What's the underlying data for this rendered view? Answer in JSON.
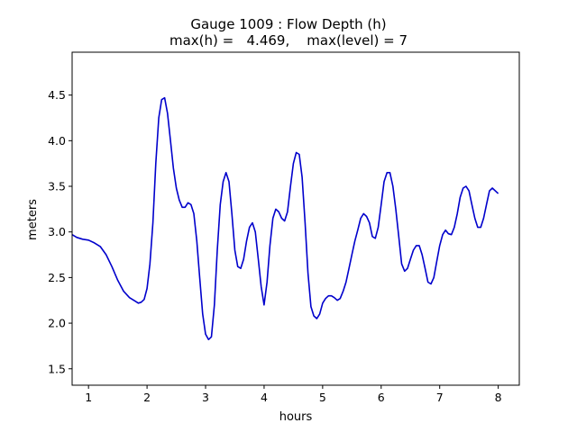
{
  "chart_data": {
    "type": "line",
    "title_line1": "Gauge 1009 : Flow Depth (h)",
    "title_line2": "max(h) =   4.469,    max(level) = 7",
    "xlabel": "hours",
    "ylabel": "meters",
    "xlim": [
      0.72,
      8.36
    ],
    "ylim": [
      1.32,
      4.97
    ],
    "xticks": [
      1,
      2,
      3,
      4,
      5,
      6,
      7,
      8
    ],
    "xtick_labels": [
      "1",
      "2",
      "3",
      "4",
      "5",
      "6",
      "7",
      "8"
    ],
    "yticks": [
      1.5,
      2.0,
      2.5,
      3.0,
      3.5,
      4.0,
      4.5
    ],
    "ytick_labels": [
      "1.5",
      "2.0",
      "2.5",
      "3.0",
      "3.5",
      "4.0",
      "4.5"
    ],
    "grid": false,
    "line_color": "#0000cc",
    "series": [
      {
        "x": [
          0.72,
          0.8,
          0.9,
          1.0,
          1.1,
          1.2,
          1.3,
          1.4,
          1.5,
          1.6,
          1.7,
          1.8,
          1.85,
          1.9,
          1.95,
          2.0,
          2.05,
          2.1,
          2.15,
          2.2,
          2.25,
          2.3,
          2.35,
          2.4,
          2.45,
          2.5,
          2.55,
          2.6,
          2.65,
          2.7,
          2.75,
          2.8,
          2.85,
          2.9,
          2.95,
          3.0,
          3.05,
          3.1,
          3.15,
          3.2,
          3.25,
          3.3,
          3.35,
          3.4,
          3.45,
          3.5,
          3.55,
          3.6,
          3.65,
          3.7,
          3.75,
          3.8,
          3.85,
          3.9,
          3.95,
          4.0,
          4.05,
          4.1,
          4.15,
          4.2,
          4.25,
          4.3,
          4.35,
          4.4,
          4.45,
          4.5,
          4.55,
          4.6,
          4.65,
          4.7,
          4.75,
          4.8,
          4.85,
          4.9,
          4.95,
          5.0,
          5.05,
          5.1,
          5.15,
          5.2,
          5.25,
          5.3,
          5.35,
          5.4,
          5.45,
          5.5,
          5.55,
          5.6,
          5.65,
          5.7,
          5.75,
          5.8,
          5.85,
          5.9,
          5.95,
          6.0,
          6.05,
          6.1,
          6.15,
          6.2,
          6.25,
          6.3,
          6.35,
          6.4,
          6.45,
          6.5,
          6.55,
          6.6,
          6.65,
          6.7,
          6.75,
          6.8,
          6.85,
          6.9,
          6.95,
          7.0,
          7.05,
          7.1,
          7.15,
          7.2,
          7.25,
          7.3,
          7.35,
          7.4,
          7.45,
          7.5,
          7.55,
          7.6,
          7.65,
          7.7,
          7.75,
          7.8,
          7.85,
          7.9,
          7.95,
          8.0
        ],
        "y": [
          2.97,
          2.94,
          2.92,
          2.91,
          2.88,
          2.84,
          2.75,
          2.62,
          2.47,
          2.35,
          2.28,
          2.24,
          2.22,
          2.23,
          2.26,
          2.38,
          2.65,
          3.1,
          3.75,
          4.25,
          4.45,
          4.47,
          4.3,
          4.0,
          3.7,
          3.48,
          3.35,
          3.27,
          3.27,
          3.32,
          3.3,
          3.2,
          2.9,
          2.5,
          2.1,
          1.88,
          1.82,
          1.85,
          2.2,
          2.8,
          3.3,
          3.55,
          3.65,
          3.55,
          3.2,
          2.8,
          2.62,
          2.6,
          2.7,
          2.9,
          3.05,
          3.1,
          3.0,
          2.7,
          2.4,
          2.2,
          2.45,
          2.85,
          3.15,
          3.25,
          3.22,
          3.15,
          3.12,
          3.22,
          3.5,
          3.75,
          3.87,
          3.85,
          3.6,
          3.1,
          2.55,
          2.18,
          2.08,
          2.05,
          2.1,
          2.22,
          2.27,
          2.3,
          2.3,
          2.28,
          2.25,
          2.27,
          2.35,
          2.45,
          2.6,
          2.75,
          2.9,
          3.02,
          3.15,
          3.2,
          3.17,
          3.1,
          2.95,
          2.93,
          3.05,
          3.3,
          3.55,
          3.65,
          3.65,
          3.5,
          3.25,
          2.95,
          2.65,
          2.57,
          2.6,
          2.7,
          2.8,
          2.85,
          2.85,
          2.75,
          2.6,
          2.45,
          2.43,
          2.5,
          2.68,
          2.85,
          2.97,
          3.02,
          2.98,
          2.97,
          3.05,
          3.2,
          3.38,
          3.48,
          3.5,
          3.45,
          3.3,
          3.15,
          3.05,
          3.05,
          3.15,
          3.3,
          3.45,
          3.48,
          3.45,
          3.42
        ]
      }
    ]
  }
}
